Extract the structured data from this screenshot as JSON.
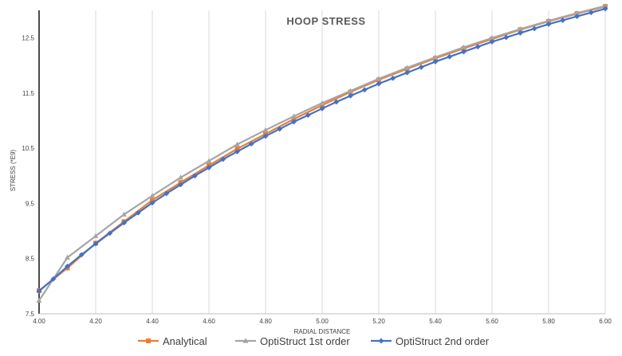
{
  "chart_data": {
    "type": "line",
    "title": "HOOP STRESS",
    "xlabel": "RADIAL DISTANCE",
    "ylabel": "STRESS (*E9)",
    "xlim": [
      4.0,
      6.0
    ],
    "ylim": [
      7.5,
      13.0
    ],
    "x_ticks": [
      "4.00",
      "4.20",
      "4.40",
      "4.60",
      "4.80",
      "5.00",
      "5.20",
      "5.40",
      "5.60",
      "5.80",
      "6.00"
    ],
    "y_ticks": [
      "7.5",
      "8.5",
      "9.5",
      "10.5",
      "11.5",
      "12.5"
    ],
    "grid": "vertical",
    "legend_position": "bottom",
    "series": [
      {
        "name": "Analytical",
        "color": "#ED7D31",
        "marker": "square",
        "x": [
          4.0,
          4.1,
          4.2,
          4.3,
          4.4,
          4.5,
          4.6,
          4.7,
          4.8,
          4.9,
          5.0,
          5.1,
          5.2,
          5.3,
          5.4,
          5.5,
          5.6,
          5.7,
          5.8,
          5.9,
          6.0
        ],
        "values": [
          7.92,
          8.33,
          8.78,
          9.17,
          9.56,
          9.88,
          10.19,
          10.49,
          10.76,
          11.03,
          11.28,
          11.52,
          11.74,
          11.94,
          12.13,
          12.31,
          12.48,
          12.65,
          12.8,
          12.94,
          13.07
        ]
      },
      {
        "name": "OptiStruct 1st order",
        "color": "#A5A5A5",
        "marker": "triangle",
        "x": [
          4.0,
          4.1,
          4.2,
          4.3,
          4.4,
          4.5,
          4.6,
          4.7,
          4.8,
          4.9,
          5.0,
          5.1,
          5.2,
          5.3,
          5.4,
          5.5,
          5.6,
          5.7,
          5.8,
          5.9,
          6.0
        ],
        "values": [
          7.74,
          8.52,
          8.91,
          9.3,
          9.64,
          9.97,
          10.27,
          10.57,
          10.83,
          11.08,
          11.32,
          11.54,
          11.76,
          11.96,
          12.15,
          12.33,
          12.5,
          12.66,
          12.81,
          12.95,
          13.08
        ]
      },
      {
        "name": "OptiStruct 2nd order",
        "color": "#4472C4",
        "marker": "diamond",
        "x": [
          4.0,
          4.05,
          4.1,
          4.15,
          4.2,
          4.25,
          4.3,
          4.35,
          4.4,
          4.45,
          4.5,
          4.55,
          4.6,
          4.65,
          4.7,
          4.75,
          4.8,
          4.85,
          4.9,
          4.95,
          5.0,
          5.05,
          5.1,
          5.15,
          5.2,
          5.25,
          5.3,
          5.35,
          5.4,
          5.45,
          5.5,
          5.55,
          5.6,
          5.65,
          5.7,
          5.75,
          5.8,
          5.85,
          5.9,
          5.95,
          6.0
        ],
        "values": [
          7.91,
          8.13,
          8.36,
          8.57,
          8.77,
          8.96,
          9.15,
          9.33,
          9.51,
          9.68,
          9.84,
          10.0,
          10.15,
          10.3,
          10.44,
          10.58,
          10.72,
          10.85,
          10.98,
          11.1,
          11.22,
          11.34,
          11.45,
          11.56,
          11.67,
          11.77,
          11.87,
          11.97,
          12.07,
          12.16,
          12.25,
          12.34,
          12.43,
          12.51,
          12.59,
          12.67,
          12.75,
          12.82,
          12.89,
          12.96,
          13.03
        ]
      }
    ]
  }
}
